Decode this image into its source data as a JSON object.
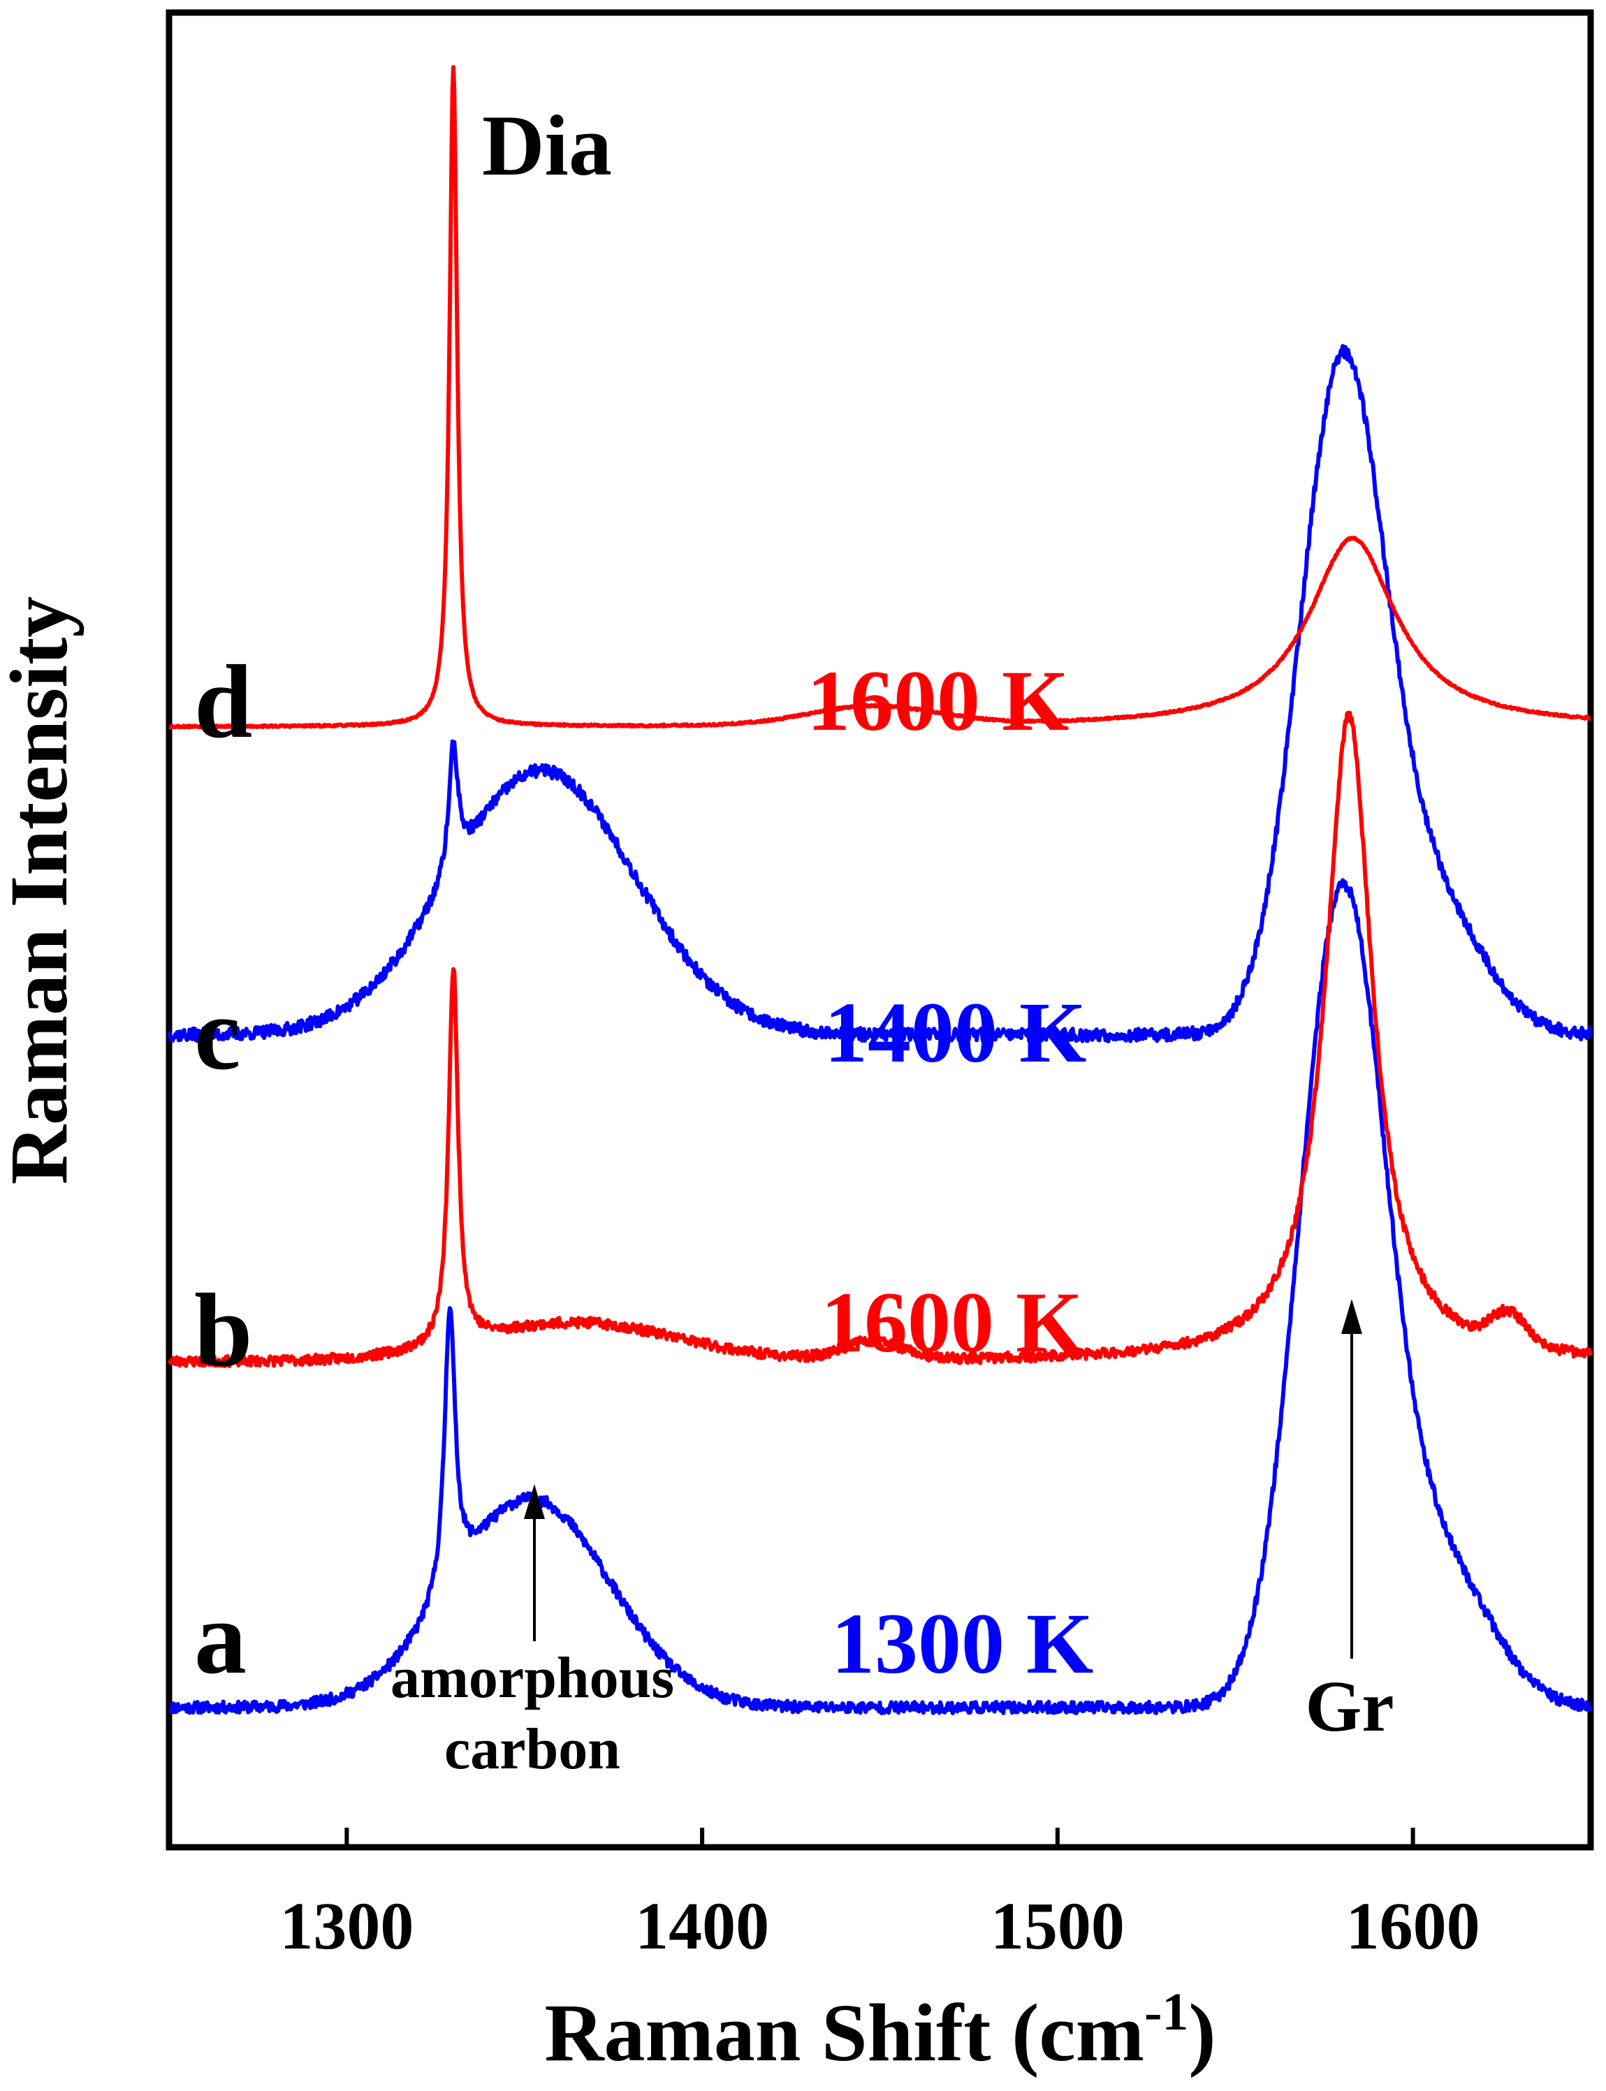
{
  "chart_data": {
    "type": "line",
    "xlabel": "Raman Shift (cm",
    "xlabel_sup": "-1",
    "xlabel_close": ")",
    "ylabel": "Raman Intensity",
    "xlim": [
      1250,
      1650
    ],
    "xticks": [
      1300,
      1400,
      1500,
      1600
    ],
    "grid": false,
    "series": [
      {
        "id": "a",
        "label": "a",
        "temperature": "1300 K",
        "color": "#0000ff",
        "baseline": 0.0,
        "noise": 0.009,
        "seed": 11,
        "peaks": [
          {
            "center": 1329,
            "width": 1.8,
            "height": 0.45,
            "shape": "lorentz"
          },
          {
            "center": 1352,
            "width": 22,
            "height": 0.33,
            "shape": "gauss"
          },
          {
            "center": 1580,
            "width": 12,
            "height": 1.28,
            "shape": "gauss"
          },
          {
            "center": 1608,
            "width": 14,
            "height": 0.22,
            "shape": "gauss"
          }
        ]
      },
      {
        "id": "b",
        "label": "b",
        "temperature": "1600 K",
        "color": "#ff0000",
        "baseline": 0.55,
        "noise": 0.008,
        "seed": 23,
        "peaks": [
          {
            "center": 1330,
            "width": 1.6,
            "height": 0.6,
            "shape": "lorentz"
          },
          {
            "center": 1365,
            "width": 28,
            "height": 0.06,
            "shape": "gauss"
          },
          {
            "center": 1448,
            "width": 8,
            "height": 0.03,
            "shape": "gauss"
          },
          {
            "center": 1582,
            "width": 8,
            "height": 1.03,
            "shape": "lorentz"
          },
          {
            "center": 1627,
            "width": 5,
            "height": 0.05,
            "shape": "gauss"
          }
        ]
      },
      {
        "id": "c",
        "label": "c",
        "temperature": "1400 K",
        "color": "#0000ff",
        "baseline": 1.07,
        "noise": 0.01,
        "seed": 37,
        "peaks": [
          {
            "center": 1330,
            "width": 1.6,
            "height": 0.2,
            "shape": "lorentz"
          },
          {
            "center": 1355,
            "width": 26,
            "height": 0.42,
            "shape": "gauss"
          },
          {
            "center": 1580,
            "width": 12,
            "height": 1.05,
            "shape": "gauss"
          },
          {
            "center": 1606,
            "width": 14,
            "height": 0.2,
            "shape": "gauss"
          }
        ]
      },
      {
        "id": "d",
        "label": "d",
        "temperature": "1600 K",
        "color": "#ff0000",
        "baseline": 1.56,
        "noise": 0.0015,
        "seed": 53,
        "peaks": [
          {
            "center": 1330,
            "width": 1.3,
            "height": 1.05,
            "shape": "lorentz"
          },
          {
            "center": 1448,
            "width": 18,
            "height": 0.03,
            "shape": "gauss"
          },
          {
            "center": 1583,
            "width": 15,
            "height": 0.3,
            "shape": "lorentz"
          }
        ]
      }
    ],
    "annotations": [
      {
        "id": "dia",
        "text": "Dia",
        "x": 1330
      },
      {
        "id": "amorphous",
        "text": [
          "amorphous",
          "carbon"
        ],
        "x": 1352,
        "arrow": true
      },
      {
        "id": "gr",
        "text": "Gr",
        "x": 1582,
        "arrow": true
      }
    ]
  }
}
